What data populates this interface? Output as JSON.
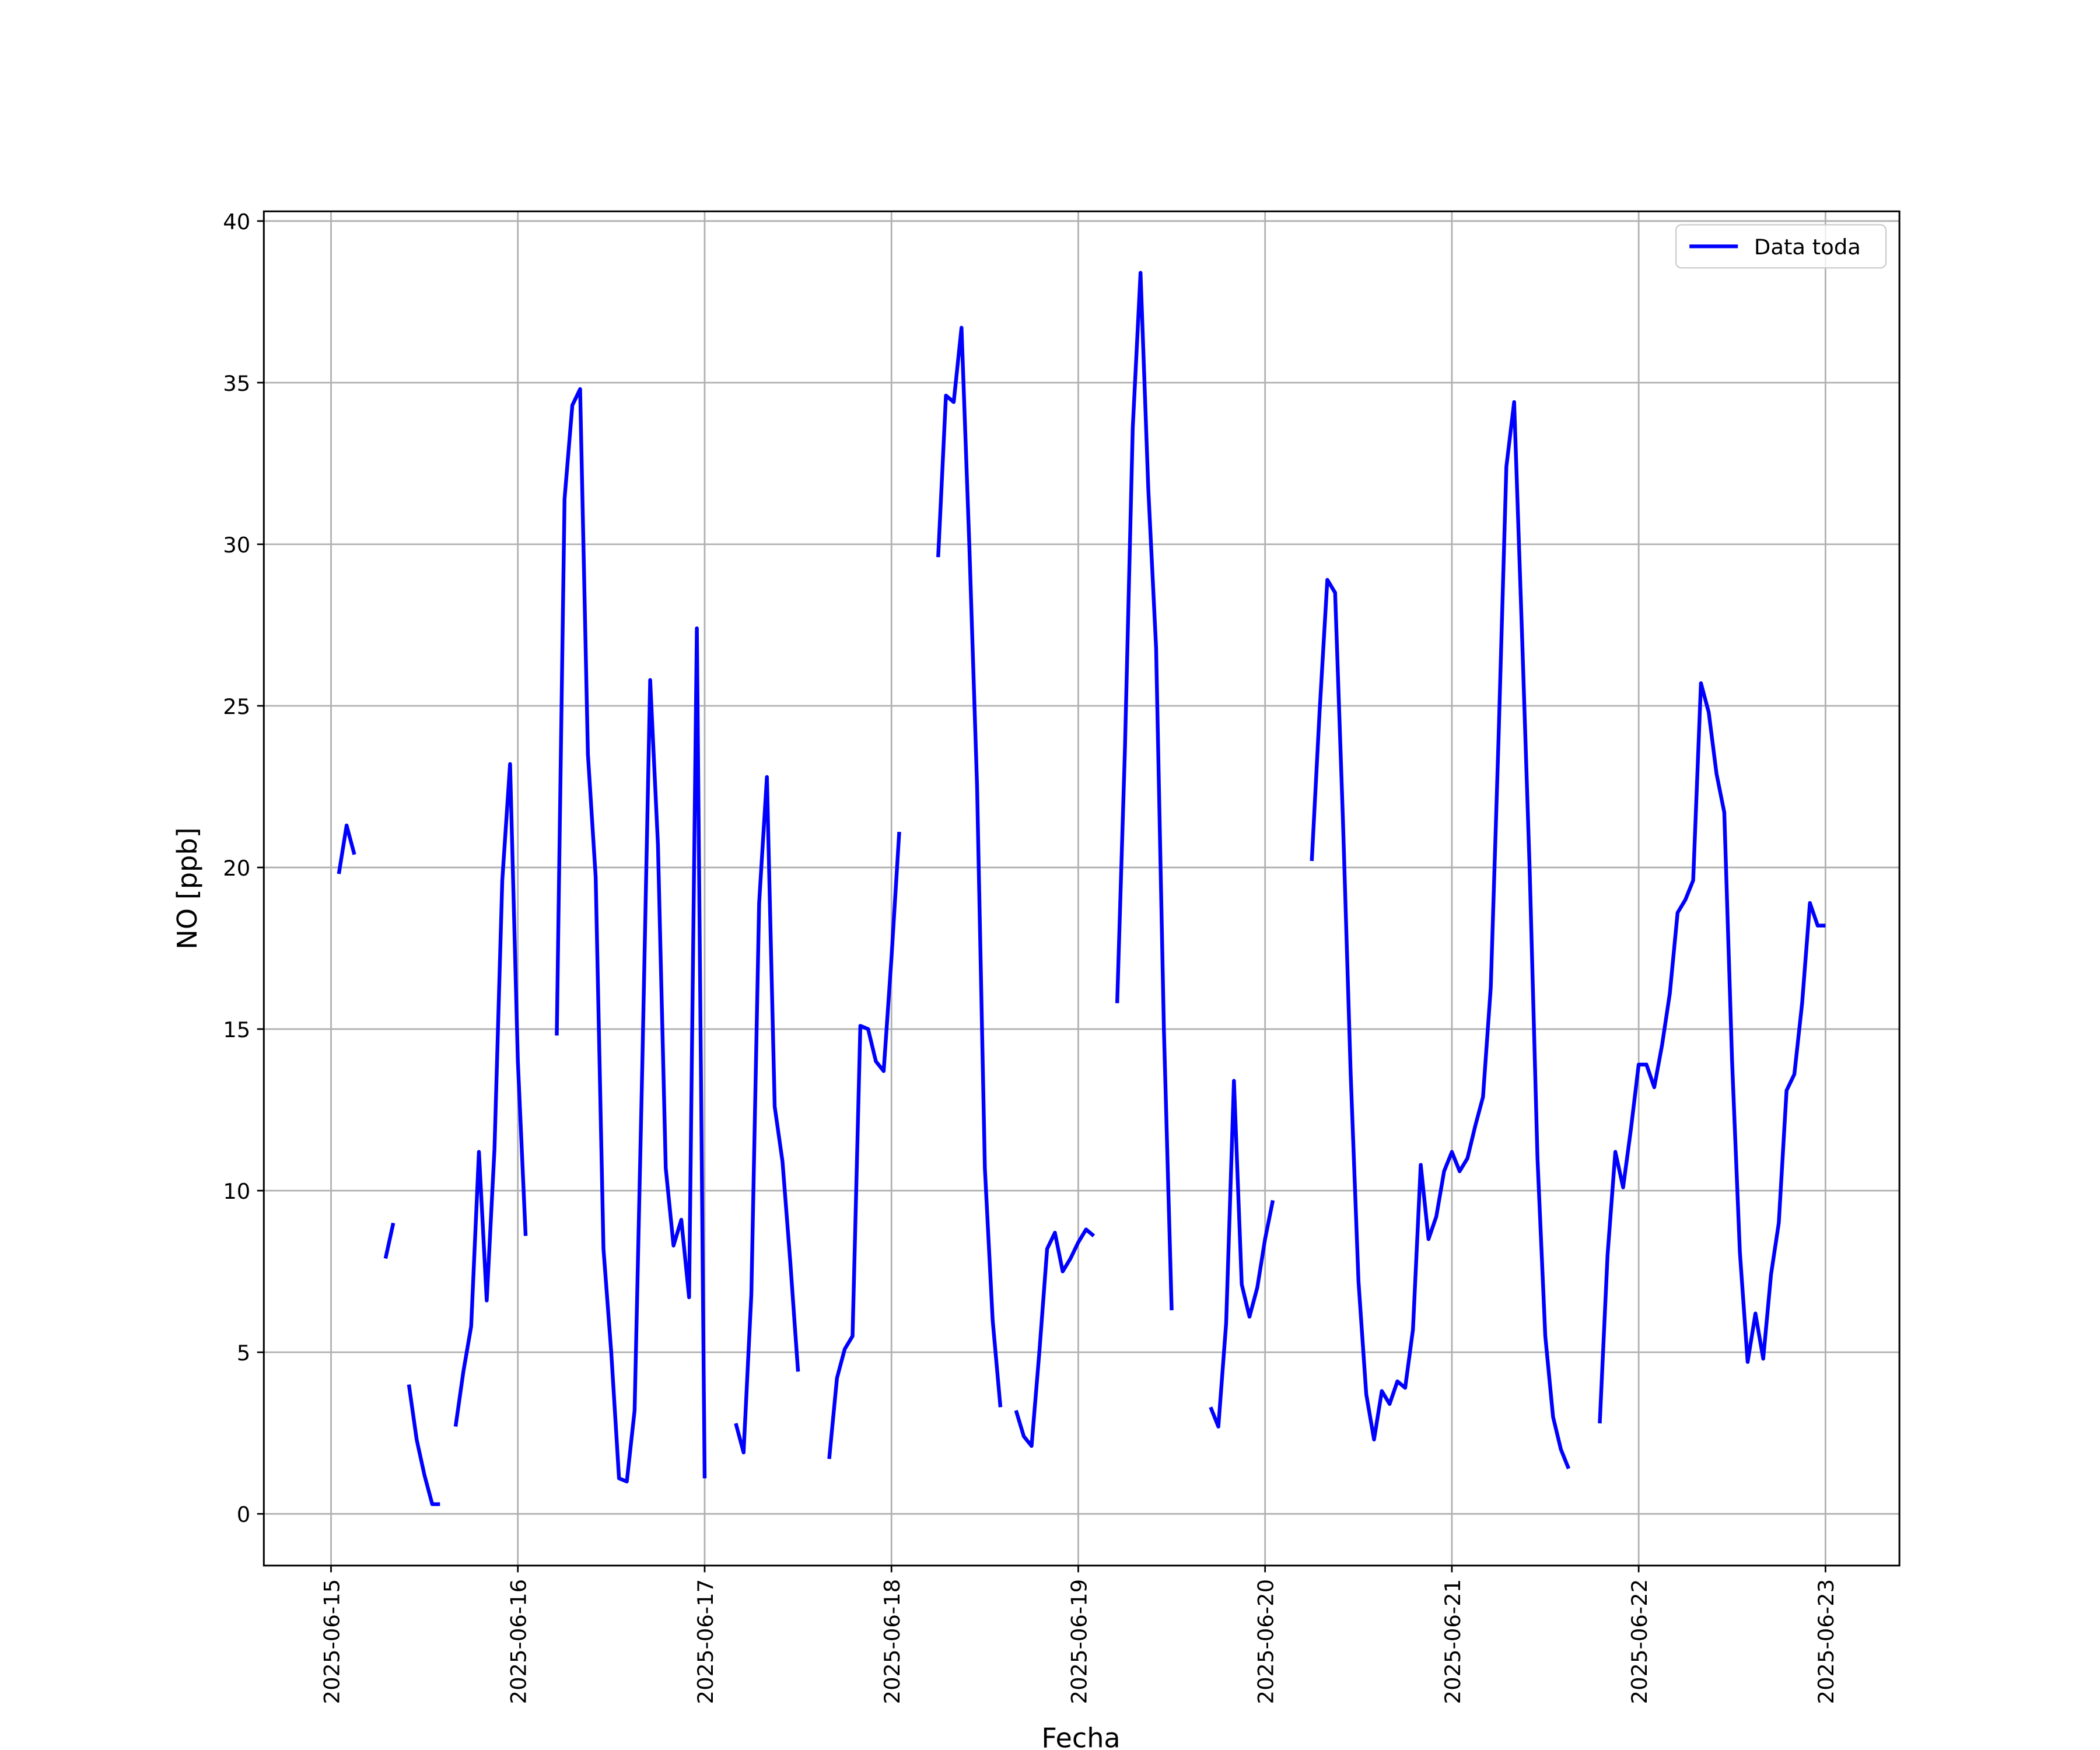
{
  "chart_data": {
    "type": "line",
    "xlabel": "Fecha",
    "ylabel": "NO [ppb]",
    "x": [
      "2025-06-15 00:00",
      "2025-06-15 01:00",
      "2025-06-15 02:00",
      "2025-06-15 03:00",
      "2025-06-15 04:00",
      "2025-06-15 05:00",
      "2025-06-15 06:00",
      "2025-06-15 07:00",
      "2025-06-15 08:00",
      "2025-06-15 09:00",
      "2025-06-15 10:00",
      "2025-06-15 11:00",
      "2025-06-15 12:00",
      "2025-06-15 13:00",
      "2025-06-15 14:00",
      "2025-06-15 15:00",
      "2025-06-15 16:00",
      "2025-06-15 17:00",
      "2025-06-15 18:00",
      "2025-06-15 19:00",
      "2025-06-15 20:00",
      "2025-06-15 21:00",
      "2025-06-15 22:00",
      "2025-06-15 23:00",
      "2025-06-16 00:00",
      "2025-06-16 01:00",
      "2025-06-16 02:00",
      "2025-06-16 03:00",
      "2025-06-16 04:00",
      "2025-06-16 05:00",
      "2025-06-16 06:00",
      "2025-06-16 07:00",
      "2025-06-16 08:00",
      "2025-06-16 09:00",
      "2025-06-16 10:00",
      "2025-06-16 11:00",
      "2025-06-16 12:00",
      "2025-06-16 13:00",
      "2025-06-16 14:00",
      "2025-06-16 15:00",
      "2025-06-16 16:00",
      "2025-06-16 17:00",
      "2025-06-16 18:00",
      "2025-06-16 19:00",
      "2025-06-16 20:00",
      "2025-06-16 21:00",
      "2025-06-16 22:00",
      "2025-06-16 23:00",
      "2025-06-17 00:00",
      "2025-06-17 01:00",
      "2025-06-17 02:00",
      "2025-06-17 03:00",
      "2025-06-17 04:00",
      "2025-06-17 05:00",
      "2025-06-17 06:00",
      "2025-06-17 07:00",
      "2025-06-17 08:00",
      "2025-06-17 09:00",
      "2025-06-17 10:00",
      "2025-06-17 11:00",
      "2025-06-17 12:00",
      "2025-06-17 13:00",
      "2025-06-17 14:00",
      "2025-06-17 15:00",
      "2025-06-17 16:00",
      "2025-06-17 17:00",
      "2025-06-17 18:00",
      "2025-06-17 19:00",
      "2025-06-17 20:00",
      "2025-06-17 21:00",
      "2025-06-17 22:00",
      "2025-06-17 23:00",
      "2025-06-18 00:00",
      "2025-06-18 01:00",
      "2025-06-18 02:00",
      "2025-06-18 03:00",
      "2025-06-18 04:00",
      "2025-06-18 05:00",
      "2025-06-18 06:00",
      "2025-06-18 07:00",
      "2025-06-18 08:00",
      "2025-06-18 09:00",
      "2025-06-18 10:00",
      "2025-06-18 11:00",
      "2025-06-18 12:00",
      "2025-06-18 13:00",
      "2025-06-18 14:00",
      "2025-06-18 15:00",
      "2025-06-18 16:00",
      "2025-06-18 17:00",
      "2025-06-18 18:00",
      "2025-06-18 19:00",
      "2025-06-18 20:00",
      "2025-06-18 21:00",
      "2025-06-18 22:00",
      "2025-06-18 23:00",
      "2025-06-19 00:00",
      "2025-06-19 01:00",
      "2025-06-19 02:00",
      "2025-06-19 03:00",
      "2025-06-19 04:00",
      "2025-06-19 05:00",
      "2025-06-19 06:00",
      "2025-06-19 07:00",
      "2025-06-19 08:00",
      "2025-06-19 09:00",
      "2025-06-19 10:00",
      "2025-06-19 11:00",
      "2025-06-19 12:00",
      "2025-06-19 13:00",
      "2025-06-19 14:00",
      "2025-06-19 15:00",
      "2025-06-19 16:00",
      "2025-06-19 17:00",
      "2025-06-19 18:00",
      "2025-06-19 19:00",
      "2025-06-19 20:00",
      "2025-06-19 21:00",
      "2025-06-19 22:00",
      "2025-06-19 23:00",
      "2025-06-20 00:00",
      "2025-06-20 01:00",
      "2025-06-20 02:00",
      "2025-06-20 03:00",
      "2025-06-20 04:00",
      "2025-06-20 05:00",
      "2025-06-20 06:00",
      "2025-06-20 07:00",
      "2025-06-20 08:00",
      "2025-06-20 09:00",
      "2025-06-20 10:00",
      "2025-06-20 11:00",
      "2025-06-20 12:00",
      "2025-06-20 13:00",
      "2025-06-20 14:00",
      "2025-06-20 15:00",
      "2025-06-20 16:00",
      "2025-06-20 17:00",
      "2025-06-20 18:00",
      "2025-06-20 19:00",
      "2025-06-20 20:00",
      "2025-06-20 21:00",
      "2025-06-20 22:00",
      "2025-06-20 23:00",
      "2025-06-21 00:00",
      "2025-06-21 01:00",
      "2025-06-21 02:00",
      "2025-06-21 03:00",
      "2025-06-21 04:00",
      "2025-06-21 05:00",
      "2025-06-21 06:00",
      "2025-06-21 07:00",
      "2025-06-21 08:00",
      "2025-06-21 09:00",
      "2025-06-21 10:00",
      "2025-06-21 11:00",
      "2025-06-21 12:00",
      "2025-06-21 13:00",
      "2025-06-21 14:00",
      "2025-06-21 15:00",
      "2025-06-21 16:00",
      "2025-06-21 17:00",
      "2025-06-21 18:00",
      "2025-06-21 19:00",
      "2025-06-21 20:00",
      "2025-06-21 21:00",
      "2025-06-21 22:00",
      "2025-06-21 23:00",
      "2025-06-22 00:00",
      "2025-06-22 01:00",
      "2025-06-22 02:00",
      "2025-06-22 03:00",
      "2025-06-22 04:00",
      "2025-06-22 05:00",
      "2025-06-22 06:00",
      "2025-06-22 07:00",
      "2025-06-22 08:00",
      "2025-06-22 09:00",
      "2025-06-22 10:00",
      "2025-06-22 11:00",
      "2025-06-22 12:00",
      "2025-06-22 13:00",
      "2025-06-22 14:00",
      "2025-06-22 15:00",
      "2025-06-22 16:00",
      "2025-06-22 17:00",
      "2025-06-22 18:00",
      "2025-06-22 19:00",
      "2025-06-22 20:00",
      "2025-06-22 21:00",
      "2025-06-22 22:00",
      "2025-06-22 23:00",
      "2025-06-23 00:00"
    ],
    "series": [
      {
        "name": "Data toda",
        "color": "#0000ff",
        "values": [
          null,
          19.8,
          21.3,
          20.4,
          null,
          null,
          null,
          7.9,
          9.0,
          null,
          4.0,
          2.3,
          1.2,
          0.3,
          0.3,
          null,
          2.7,
          4.4,
          5.8,
          11.2,
          6.6,
          11.3,
          19.6,
          23.2,
          14.0,
          8.6,
          null,
          null,
          null,
          14.8,
          31.4,
          34.3,
          34.8,
          23.5,
          19.7,
          8.2,
          5.0,
          1.1,
          1.0,
          3.2,
          14.0,
          25.8,
          20.7,
          10.7,
          8.3,
          9.1,
          6.7,
          27.4,
          1.1,
          null,
          null,
          null,
          2.8,
          1.9,
          6.8,
          18.9,
          22.8,
          12.6,
          10.9,
          7.8,
          4.4,
          null,
          null,
          null,
          1.7,
          4.2,
          5.1,
          5.5,
          15.1,
          15.0,
          14.0,
          13.7,
          17.2,
          21.1,
          null,
          null,
          null,
          null,
          29.6,
          34.6,
          34.4,
          36.7,
          30.0,
          22.5,
          10.7,
          6.0,
          3.3,
          null,
          3.2,
          2.4,
          2.1,
          5.0,
          8.2,
          8.7,
          7.5,
          7.9,
          8.4,
          8.8,
          8.6,
          null,
          null,
          15.8,
          23.7,
          33.6,
          38.4,
          31.7,
          26.8,
          15.0,
          6.3,
          null,
          null,
          null,
          null,
          3.3,
          2.7,
          5.9,
          13.4,
          7.1,
          6.1,
          7.0,
          8.5,
          9.7,
          null,
          null,
          null,
          null,
          20.2,
          24.8,
          28.9,
          28.5,
          21.5,
          13.6,
          7.2,
          3.7,
          2.3,
          3.8,
          3.4,
          4.1,
          3.9,
          5.7,
          10.8,
          8.5,
          9.2,
          10.6,
          11.2,
          10.6,
          11.0,
          12.0,
          12.9,
          16.3,
          24.0,
          32.4,
          34.4,
          27.3,
          19.9,
          11.0,
          5.5,
          3.0,
          2.0,
          1.4,
          null,
          null,
          null,
          2.8,
          8.0,
          11.2,
          10.1,
          11.9,
          13.9,
          13.9,
          13.2,
          14.5,
          16.1,
          18.6,
          19.0,
          19.6,
          25.7,
          24.8,
          22.9,
          21.7,
          14.0,
          8.1,
          4.7,
          6.2,
          4.8,
          7.4,
          9.0,
          13.1,
          13.6,
          15.8,
          18.9,
          18.2,
          18.2
        ]
      }
    ],
    "xlim": [
      "2025-06-14 15:22",
      "2025-06-23 09:30"
    ],
    "xticks": [
      "2025-06-15",
      "2025-06-16",
      "2025-06-17",
      "2025-06-18",
      "2025-06-19",
      "2025-06-20",
      "2025-06-21",
      "2025-06-22",
      "2025-06-23"
    ],
    "ylim": [
      -1.6,
      40.3
    ],
    "yticks": [
      0,
      5,
      10,
      15,
      20,
      25,
      30,
      35,
      40
    ],
    "grid": true,
    "legend": "upper right"
  }
}
